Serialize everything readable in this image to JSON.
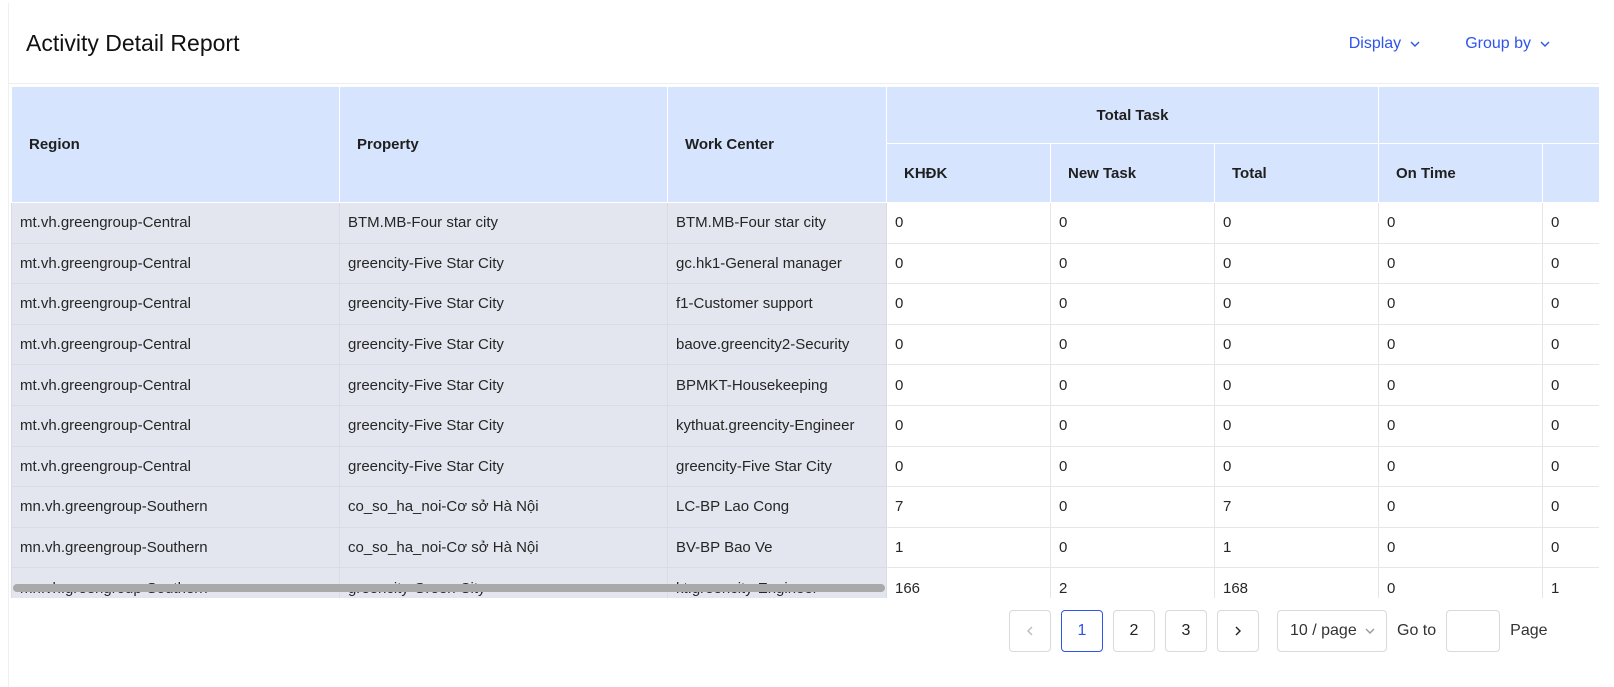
{
  "header": {
    "title": "Activity Detail Report",
    "display_label": "Display",
    "group_by_label": "Group by"
  },
  "table": {
    "columns": {
      "region": "Region",
      "property": "Property",
      "work_center": "Work Center",
      "total_task_group": "Total Task",
      "khdk": "KHĐK",
      "new_task": "New Task",
      "total": "Total",
      "on_time": "On Time"
    },
    "rows": [
      {
        "region": "mt.vh.greengroup-Central",
        "property": "BTM.MB-Four star city",
        "work_center": "BTM.MB-Four star city",
        "khdk": "0",
        "new_task": "0",
        "total": "0",
        "on_time": "0",
        "next": "0"
      },
      {
        "region": "mt.vh.greengroup-Central",
        "property": "greencity-Five Star City",
        "work_center": "gc.hk1-General manager",
        "khdk": "0",
        "new_task": "0",
        "total": "0",
        "on_time": "0",
        "next": "0"
      },
      {
        "region": "mt.vh.greengroup-Central",
        "property": "greencity-Five Star City",
        "work_center": "f1-Customer support",
        "khdk": "0",
        "new_task": "0",
        "total": "0",
        "on_time": "0",
        "next": "0"
      },
      {
        "region": "mt.vh.greengroup-Central",
        "property": "greencity-Five Star City",
        "work_center": "baove.greencity2-Security",
        "khdk": "0",
        "new_task": "0",
        "total": "0",
        "on_time": "0",
        "next": "0"
      },
      {
        "region": "mt.vh.greengroup-Central",
        "property": "greencity-Five Star City",
        "work_center": "BPMKT-Housekeeping",
        "khdk": "0",
        "new_task": "0",
        "total": "0",
        "on_time": "0",
        "next": "0"
      },
      {
        "region": "mt.vh.greengroup-Central",
        "property": "greencity-Five Star City",
        "work_center": "kythuat.greencity-Engineer",
        "khdk": "0",
        "new_task": "0",
        "total": "0",
        "on_time": "0",
        "next": "0"
      },
      {
        "region": "mt.vh.greengroup-Central",
        "property": "greencity-Five Star City",
        "work_center": "greencity-Five Star City",
        "khdk": "0",
        "new_task": "0",
        "total": "0",
        "on_time": "0",
        "next": "0"
      },
      {
        "region": "mn.vh.greengroup-Southern",
        "property": "co_so_ha_noi-Cơ sở Hà Nội",
        "work_center": "LC-BP Lao Cong",
        "khdk": "7",
        "new_task": "0",
        "total": "7",
        "on_time": "0",
        "next": "0"
      },
      {
        "region": "mn.vh.greengroup-Southern",
        "property": "co_so_ha_noi-Cơ sở Hà Nội",
        "work_center": "BV-BP Bao Ve",
        "khdk": "1",
        "new_task": "0",
        "total": "1",
        "on_time": "0",
        "next": "0"
      },
      {
        "region": "mn.vh.greengroup-Southern",
        "property": "greencity-Green City",
        "work_center": "kt.greencity-Engineer",
        "khdk": "166",
        "new_task": "2",
        "total": "168",
        "on_time": "0",
        "next": "1"
      }
    ]
  },
  "pagination": {
    "prev_icon": "chevron-left-icon",
    "next_icon": "chevron-right-icon",
    "pages": [
      "1",
      "2",
      "3"
    ],
    "current_page": "1",
    "page_size_label": "10 / page",
    "goto_label": "Go to",
    "goto_value": "",
    "page_label": "Page"
  },
  "colors": {
    "accent": "#2f54eb",
    "header_bg": "#d6e4fd",
    "fixed_col_bg": "#e3e6ee"
  }
}
